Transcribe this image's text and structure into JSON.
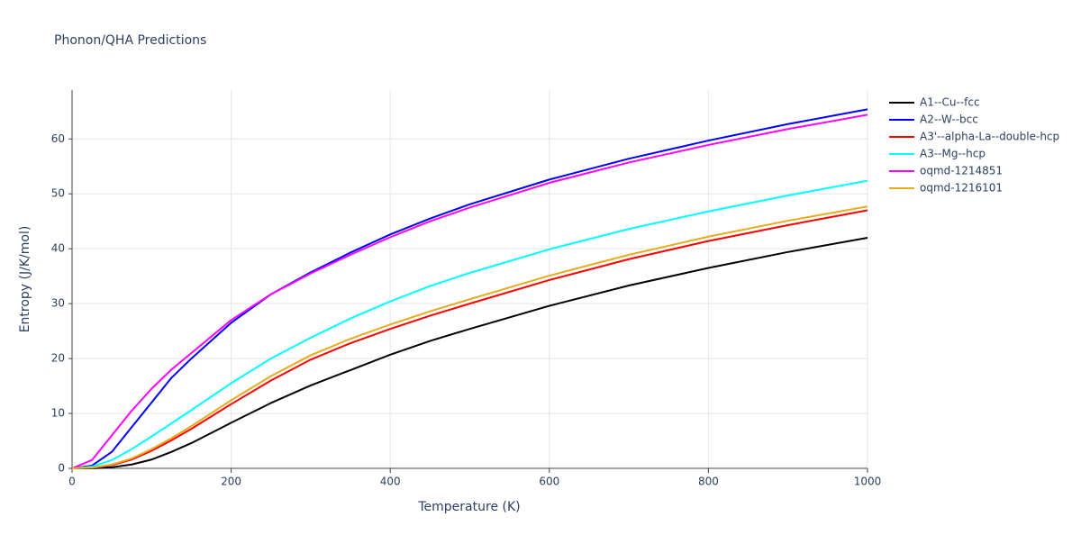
{
  "chart_data": {
    "type": "line",
    "title": "Phonon/QHA Predictions",
    "x_label": "Temperature (K)",
    "y_label": "Entropy (J/K/mol)",
    "x": [
      0,
      25,
      50,
      75,
      100,
      125,
      150,
      200,
      250,
      300,
      350,
      400,
      450,
      500,
      600,
      700,
      800,
      900,
      1000
    ],
    "series": [
      {
        "name": "A1--Cu--fcc",
        "color": "#000000",
        "values": [
          0,
          0,
          0.2,
          0.7,
          1.6,
          3,
          4.6,
          8.3,
          11.9,
          15.1,
          17.9,
          20.7,
          23.2,
          25.4,
          29.6,
          33.3,
          36.5,
          39.4,
          42
        ]
      },
      {
        "name": "A2--W--bcc",
        "color": "#0000ff",
        "values": [
          0,
          0.5,
          3,
          7.5,
          12,
          16.5,
          20,
          26.5,
          31.7,
          35.7,
          39.3,
          42.6,
          45.5,
          48.1,
          52.6,
          56.4,
          59.7,
          62.7,
          65.4
        ]
      },
      {
        "name": "A3'--alpha-La--double-hcp",
        "color": "#ff0000",
        "values": [
          0,
          0.1,
          0.6,
          1.6,
          3.2,
          5.1,
          7.2,
          11.7,
          16,
          19.8,
          22.8,
          25.4,
          27.8,
          30,
          34.3,
          38.1,
          41.4,
          44.3,
          47
        ]
      },
      {
        "name": "A3--Mg--hcp",
        "color": "#00ffff",
        "values": [
          0,
          0.3,
          1.5,
          3.5,
          5.8,
          8.2,
          10.6,
          15.5,
          20,
          23.8,
          27.3,
          30.4,
          33.2,
          35.6,
          39.9,
          43.6,
          46.8,
          49.7,
          52.4
        ]
      },
      {
        "name": "oqmd-1214851",
        "color": "#ff00ff",
        "values": [
          0,
          1.5,
          6,
          10.5,
          14.5,
          18,
          21,
          27,
          31.7,
          35.5,
          38.9,
          42.1,
          45,
          47.5,
          52,
          55.7,
          58.9,
          61.8,
          64.4
        ]
      },
      {
        "name": "oqmd-1216101",
        "color": "#e6ac1f",
        "values": [
          0,
          0.1,
          0.7,
          1.8,
          3.5,
          5.5,
          7.7,
          12.4,
          16.8,
          20.6,
          23.6,
          26.2,
          28.6,
          30.8,
          35.1,
          38.9,
          42.2,
          45.1,
          47.7
        ]
      }
    ],
    "xlim": [
      0,
      1000
    ],
    "xticks": [
      0,
      200,
      400,
      600,
      800,
      1000
    ],
    "ylim": [
      0,
      68.9
    ],
    "yticks": [
      0,
      10,
      20,
      30,
      40,
      50,
      60
    ],
    "grid": true,
    "legend": "top-right"
  }
}
